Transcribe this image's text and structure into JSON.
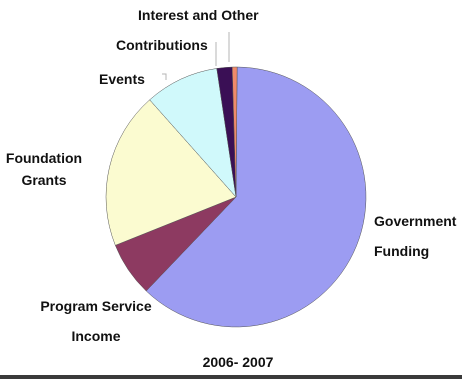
{
  "chart_data": {
    "type": "pie",
    "subtitle": "2006- 2007",
    "slices": [
      {
        "label_lines": [
          "Government",
          "Funding"
        ],
        "value": 62.0,
        "color": "#9c9cf2"
      },
      {
        "label_lines": [
          "Program Service",
          "Income"
        ],
        "value": 6.8,
        "color": "#8d3a61"
      },
      {
        "label_lines": [
          "Foundation",
          "Grants"
        ],
        "value": 19.5,
        "color": "#fbfbd0"
      },
      {
        "label_lines": [
          "Events"
        ],
        "value": 9.2,
        "color": "#d0f9fb"
      },
      {
        "label_lines": [
          "Contributions"
        ],
        "value": 1.9,
        "color": "#3a0f55"
      },
      {
        "label_lines": [
          "Interest and Other"
        ],
        "value": 0.6,
        "color": "#f08a6a"
      }
    ],
    "legend": "none",
    "leader_line_color": "#b4b4b4"
  }
}
